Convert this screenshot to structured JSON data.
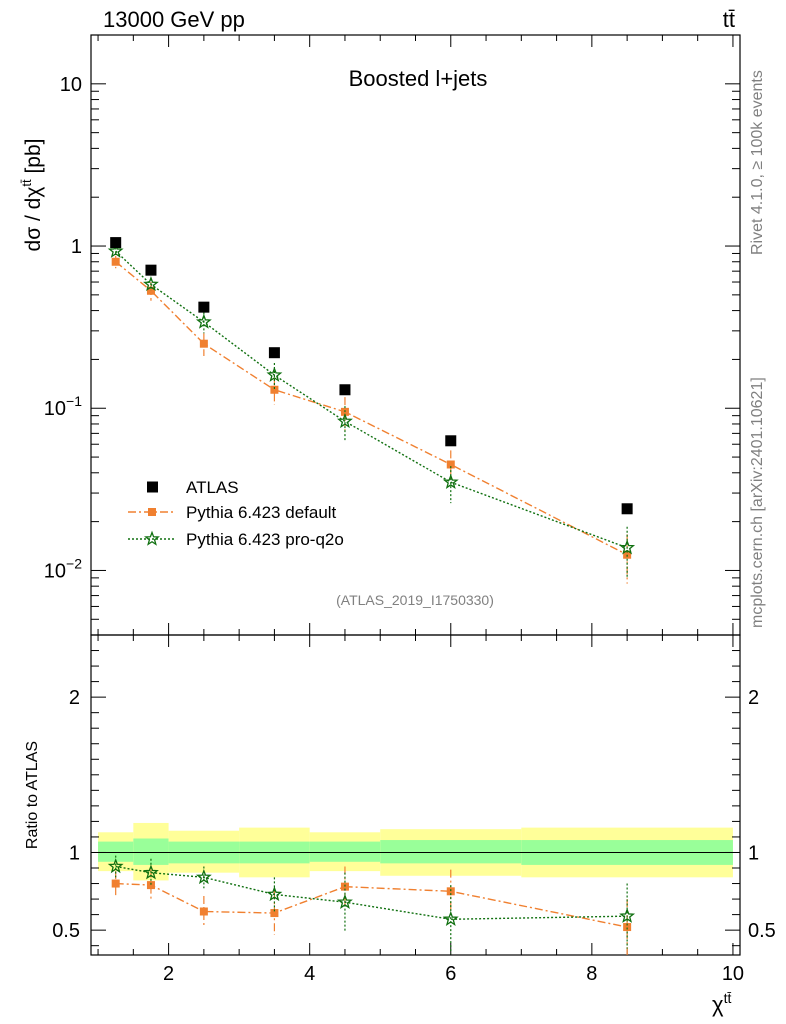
{
  "header": {
    "left_label": "13000 GeV pp",
    "right_label": "tt̄"
  },
  "side_labels": {
    "rivet": "Rivet 4.1.0, ≥ 100k events",
    "mcplots": "mcplots.cern.ch [arXiv:2401.10621]"
  },
  "chart_data": {
    "type": "scatter",
    "title": "Boosted l+jets",
    "analysis_id": "(ATLAS_2019_I1750330)",
    "xlabel": "χ^tt̄",
    "ylabel": "dσ / dχ^tt̄ [pb]",
    "ratio_ylabel": "Ratio to ATLAS",
    "xlim": [
      0.9,
      10.1
    ],
    "ylim": [
      0.004,
      20
    ],
    "ratio_ylim": [
      0.34,
      2.4
    ],
    "x_ticks": [
      2,
      4,
      6,
      8,
      10
    ],
    "x_tick_labels": [
      "2",
      "4",
      "6",
      "8",
      "10"
    ],
    "y_ticks": [
      10,
      1,
      0.1,
      0.01
    ],
    "y_tick_labels": [
      {
        "base": "10",
        "exp": ""
      },
      {
        "base": "1",
        "exp": ""
      },
      {
        "base": "10",
        "exp": "−1"
      },
      {
        "base": "10",
        "exp": "−2"
      }
    ],
    "ratio_ticks": [
      2,
      1,
      0.5
    ],
    "ratio_tick_labels": [
      "2",
      "1",
      "0.5"
    ],
    "legend": {
      "position": "middle-left",
      "entries": [
        "ATLAS",
        "Pythia 6.423 default",
        "Pythia 6.423 pro-q2o"
      ]
    },
    "bins": [
      [
        1.0,
        1.5
      ],
      [
        1.5,
        2.0
      ],
      [
        2.0,
        3.0
      ],
      [
        3.0,
        4.0
      ],
      [
        4.0,
        5.0
      ],
      [
        5.0,
        7.0
      ],
      [
        7.0,
        10.0
      ]
    ],
    "x": [
      1.25,
      1.75,
      2.5,
      3.5,
      4.5,
      6.0,
      8.5
    ],
    "series": [
      {
        "name": "ATLAS",
        "color": "#000000",
        "values": [
          1.05,
          0.71,
          0.42,
          0.22,
          0.13,
          0.063,
          0.024
        ],
        "band_inner": [
          [
            0.94,
            1.07
          ],
          [
            0.92,
            1.09
          ],
          [
            0.93,
            1.07
          ],
          [
            0.93,
            1.07
          ],
          [
            0.94,
            1.07
          ],
          [
            0.93,
            1.08
          ],
          [
            0.92,
            1.08
          ]
        ],
        "band_outer": [
          [
            0.88,
            1.13
          ],
          [
            0.82,
            1.19
          ],
          [
            0.87,
            1.14
          ],
          [
            0.84,
            1.16
          ],
          [
            0.88,
            1.13
          ],
          [
            0.85,
            1.15
          ],
          [
            0.84,
            1.16
          ]
        ]
      },
      {
        "name": "Pythia 6.423 default",
        "color": "#f08030",
        "values": [
          0.8,
          0.53,
          0.25,
          0.13,
          0.095,
          0.045,
          0.0125
        ],
        "errors": [
          0.07,
          0.07,
          0.04,
          0.025,
          0.022,
          0.01,
          0.0042
        ],
        "ratio": [
          0.8,
          0.79,
          0.62,
          0.61,
          0.78,
          0.75,
          0.52
        ],
        "ratio_errors": [
          0.08,
          0.1,
          0.1,
          0.14,
          0.13,
          0.14,
          0.18
        ]
      },
      {
        "name": "Pythia 6.423 pro-q2o",
        "color": "#107010",
        "values": [
          0.93,
          0.58,
          0.34,
          0.16,
          0.083,
          0.035,
          0.0138
        ],
        "errors": [
          0.05,
          0.05,
          0.05,
          0.03,
          0.02,
          0.009,
          0.0048
        ],
        "ratio": [
          0.91,
          0.87,
          0.84,
          0.73,
          0.68,
          0.57,
          0.59
        ],
        "ratio_errors": [
          0.07,
          0.09,
          0.07,
          0.11,
          0.19,
          0.22,
          0.21
        ]
      }
    ]
  }
}
